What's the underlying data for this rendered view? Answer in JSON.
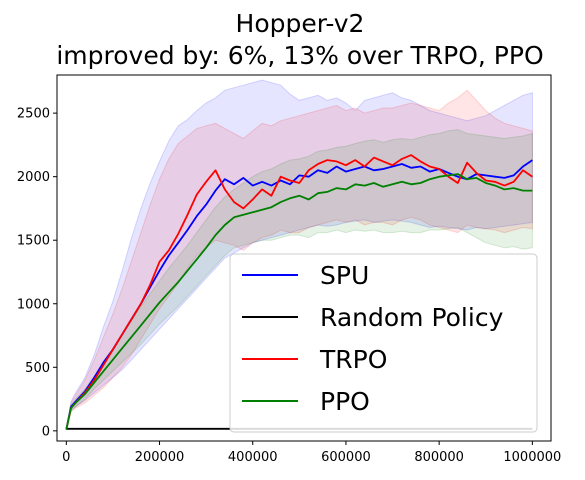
{
  "chart_data": {
    "type": "line",
    "title_line1": "Hopper-v2",
    "title_line2": "improved by: 6%, 13% over TRPO, PPO",
    "xlabel": "",
    "ylabel": "",
    "xlim": [
      -20000,
      1040000
    ],
    "ylim": [
      -80,
      2800
    ],
    "x_ticks": [
      0,
      200000,
      400000,
      600000,
      800000,
      1000000
    ],
    "x_tick_labels": [
      "0",
      "200000",
      "400000",
      "600000",
      "800000",
      "1000000"
    ],
    "y_ticks": [
      0,
      500,
      1000,
      1500,
      2000,
      2500
    ],
    "y_tick_labels": [
      "0",
      "500",
      "1000",
      "1500",
      "2000",
      "2500"
    ],
    "grid": false,
    "legend_position": "lower-right",
    "series": [
      {
        "name": "SPU",
        "color": "#0000ff",
        "x": [
          0,
          10000,
          20000,
          40000,
          60000,
          80000,
          100000,
          120000,
          140000,
          160000,
          180000,
          200000,
          220000,
          240000,
          260000,
          280000,
          300000,
          320000,
          340000,
          360000,
          380000,
          400000,
          420000,
          440000,
          460000,
          480000,
          500000,
          520000,
          540000,
          560000,
          580000,
          600000,
          620000,
          640000,
          660000,
          680000,
          700000,
          720000,
          740000,
          760000,
          780000,
          800000,
          820000,
          840000,
          860000,
          880000,
          900000,
          920000,
          940000,
          960000,
          980000,
          1000000
        ],
        "y": [
          10,
          190,
          230,
          310,
          420,
          540,
          640,
          760,
          880,
          1000,
          1130,
          1260,
          1380,
          1480,
          1580,
          1690,
          1780,
          1890,
          1980,
          1940,
          1990,
          1930,
          1960,
          1930,
          1970,
          1940,
          2010,
          2000,
          2050,
          2030,
          2080,
          2040,
          2060,
          2080,
          2050,
          2060,
          2080,
          2100,
          2070,
          2080,
          2040,
          2060,
          2030,
          2000,
          1980,
          2020,
          2010,
          2000,
          1990,
          2010,
          2080,
          2130
        ],
        "band_upper": [
          10,
          230,
          300,
          420,
          600,
          820,
          1020,
          1260,
          1520,
          1750,
          1950,
          2120,
          2280,
          2400,
          2450,
          2520,
          2580,
          2620,
          2680,
          2700,
          2720,
          2740,
          2760,
          2740,
          2720,
          2650,
          2600,
          2620,
          2640,
          2600,
          2620,
          2580,
          2520,
          2600,
          2620,
          2640,
          2660,
          2620,
          2600,
          2560,
          2520,
          2500,
          2480,
          2460,
          2440,
          2460,
          2480,
          2520,
          2560,
          2600,
          2640,
          2660
        ],
        "band_lower": [
          10,
          160,
          190,
          240,
          300,
          360,
          420,
          480,
          560,
          640,
          720,
          800,
          880,
          960,
          1040,
          1120,
          1200,
          1280,
          1360,
          1400,
          1440,
          1480,
          1500,
          1520,
          1540,
          1560,
          1580,
          1600,
          1620,
          1610,
          1620,
          1640,
          1650,
          1660,
          1640,
          1650,
          1660,
          1650,
          1640,
          1620,
          1600,
          1610,
          1600,
          1590,
          1580,
          1600,
          1590,
          1600,
          1610,
          1620,
          1630,
          1640
        ]
      },
      {
        "name": "Random Policy",
        "color": "#000000",
        "x": [
          0,
          1000000
        ],
        "y": [
          16,
          16
        ]
      },
      {
        "name": "TRPO",
        "color": "#ff0000",
        "x": [
          0,
          10000,
          20000,
          40000,
          60000,
          80000,
          100000,
          120000,
          140000,
          160000,
          180000,
          200000,
          220000,
          240000,
          260000,
          280000,
          300000,
          320000,
          340000,
          360000,
          380000,
          400000,
          420000,
          440000,
          460000,
          480000,
          500000,
          520000,
          540000,
          560000,
          580000,
          600000,
          620000,
          640000,
          660000,
          680000,
          700000,
          720000,
          740000,
          760000,
          780000,
          800000,
          820000,
          840000,
          860000,
          880000,
          900000,
          920000,
          940000,
          960000,
          980000,
          1000000
        ],
        "y": [
          10,
          180,
          220,
          300,
          400,
          520,
          640,
          760,
          880,
          1000,
          1150,
          1330,
          1420,
          1550,
          1700,
          1860,
          1960,
          2050,
          1900,
          1800,
          1750,
          1820,
          1900,
          1850,
          2000,
          1970,
          1950,
          2050,
          2100,
          2130,
          2120,
          2090,
          2130,
          2080,
          2150,
          2120,
          2090,
          2140,
          2170,
          2120,
          2080,
          2060,
          2000,
          1950,
          2110,
          2030,
          1970,
          1960,
          1930,
          1960,
          2050,
          2000
        ],
        "band_upper": [
          10,
          220,
          280,
          400,
          560,
          740,
          920,
          1120,
          1340,
          1560,
          1780,
          1980,
          2140,
          2260,
          2320,
          2380,
          2400,
          2420,
          2380,
          2340,
          2300,
          2360,
          2420,
          2400,
          2440,
          2460,
          2480,
          2500,
          2520,
          2540,
          2560,
          2520,
          2540,
          2500,
          2520,
          2540,
          2540,
          2560,
          2580,
          2560,
          2540,
          2520,
          2580,
          2620,
          2680,
          2600,
          2520,
          2460,
          2420,
          2400,
          2380,
          2360
        ],
        "band_lower": [
          10,
          150,
          180,
          220,
          280,
          340,
          420,
          500,
          600,
          720,
          840,
          960,
          1060,
          1160,
          1280,
          1380,
          1440,
          1500,
          1480,
          1460,
          1420,
          1480,
          1520,
          1540,
          1580,
          1560,
          1560,
          1600,
          1620,
          1640,
          1660,
          1640,
          1660,
          1620,
          1640,
          1640,
          1620,
          1660,
          1680,
          1660,
          1620,
          1600,
          1580,
          1560,
          1620,
          1600,
          1590,
          1580,
          1560,
          1580,
          1600,
          1590
        ]
      },
      {
        "name": "PPO",
        "color": "#008000",
        "x": [
          0,
          10000,
          20000,
          40000,
          60000,
          80000,
          100000,
          120000,
          140000,
          160000,
          180000,
          200000,
          220000,
          240000,
          260000,
          280000,
          300000,
          320000,
          340000,
          360000,
          380000,
          400000,
          420000,
          440000,
          460000,
          480000,
          500000,
          520000,
          540000,
          560000,
          580000,
          600000,
          620000,
          640000,
          660000,
          680000,
          700000,
          720000,
          740000,
          760000,
          780000,
          800000,
          820000,
          840000,
          860000,
          880000,
          900000,
          920000,
          940000,
          960000,
          980000,
          1000000
        ],
        "y": [
          10,
          180,
          220,
          290,
          380,
          470,
          560,
          650,
          740,
          830,
          920,
          1010,
          1090,
          1170,
          1260,
          1350,
          1440,
          1540,
          1620,
          1680,
          1700,
          1720,
          1740,
          1760,
          1800,
          1830,
          1850,
          1820,
          1870,
          1880,
          1910,
          1900,
          1940,
          1930,
          1950,
          1920,
          1940,
          1960,
          1940,
          1950,
          1980,
          2000,
          2010,
          2020,
          1980,
          1990,
          1950,
          1930,
          1900,
          1910,
          1890,
          1890
        ],
        "band_upper": [
          10,
          200,
          250,
          330,
          430,
          540,
          650,
          760,
          870,
          980,
          1080,
          1180,
          1280,
          1370,
          1460,
          1560,
          1660,
          1760,
          1840,
          1900,
          1950,
          2000,
          2040,
          2060,
          2100,
          2130,
          2140,
          2160,
          2200,
          2210,
          2230,
          2240,
          2260,
          2280,
          2290,
          2270,
          2290,
          2300,
          2290,
          2310,
          2330,
          2340,
          2360,
          2370,
          2340,
          2330,
          2320,
          2310,
          2300,
          2310,
          2320,
          2340
        ],
        "band_lower": [
          10,
          160,
          190,
          250,
          330,
          400,
          470,
          540,
          610,
          680,
          760,
          840,
          910,
          980,
          1060,
          1140,
          1220,
          1300,
          1380,
          1440,
          1460,
          1480,
          1500,
          1500,
          1520,
          1540,
          1540,
          1520,
          1560,
          1560,
          1580,
          1560,
          1580,
          1570,
          1580,
          1560,
          1560,
          1570,
          1560,
          1560,
          1580,
          1580,
          1590,
          1600,
          1560,
          1520,
          1480,
          1460,
          1440,
          1450,
          1430,
          1440
        ]
      }
    ]
  }
}
